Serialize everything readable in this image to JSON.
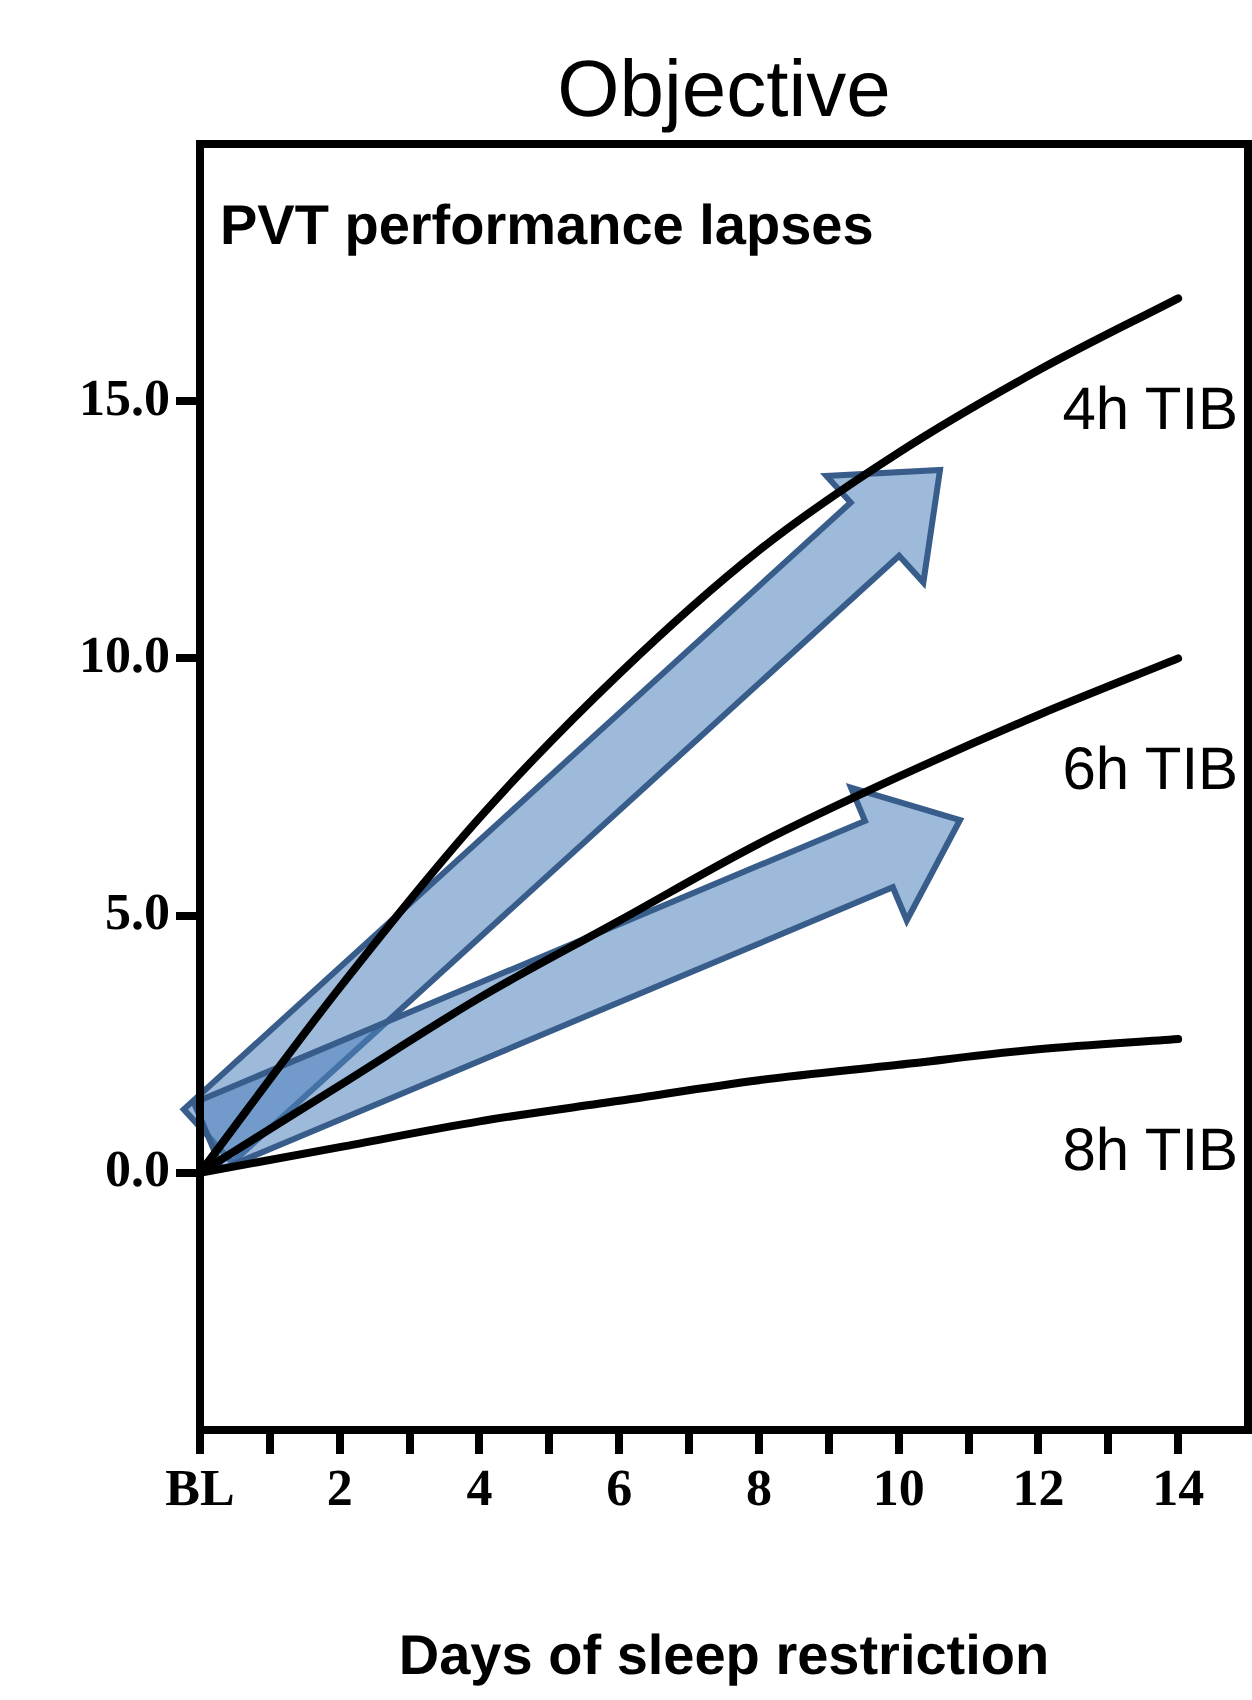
{
  "chart_data": {
    "type": "line",
    "title": "Objective",
    "subtitle": "PVT performance lapses",
    "xlabel": "Days of sleep restriction",
    "x": [
      0,
      2,
      4,
      6,
      8,
      10,
      12,
      14
    ],
    "series": [
      {
        "name": "4h TIB",
        "color": "#000000",
        "values": [
          0,
          3.6,
          6.9,
          9.7,
          12.1,
          14.0,
          15.6,
          17.0
        ]
      },
      {
        "name": "6h TIB",
        "color": "#000000",
        "values": [
          0,
          1.7,
          3.4,
          4.9,
          6.4,
          7.7,
          8.9,
          10.0
        ]
      },
      {
        "name": "8h TIB",
        "color": "#000000",
        "values": [
          0,
          0.5,
          1.0,
          1.4,
          1.8,
          2.1,
          2.4,
          2.6
        ]
      }
    ],
    "xlim": [
      0,
      15
    ],
    "xticks": [
      {
        "value": 0,
        "label": "BL"
      },
      {
        "value": 1,
        "label": null
      },
      2,
      {
        "value": 3,
        "label": null
      },
      4,
      {
        "value": 5,
        "label": null
      },
      6,
      {
        "value": 7,
        "label": null
      },
      8,
      {
        "value": 9,
        "label": null
      },
      10,
      {
        "value": 11,
        "label": null
      },
      12,
      {
        "value": 13,
        "label": null
      },
      14
    ],
    "ylim": [
      -5,
      20
    ],
    "yticks": [
      {
        "value": 0,
        "label": "0.0"
      },
      {
        "value": 5,
        "label": "5.0"
      },
      {
        "value": 10,
        "label": "10.0"
      },
      {
        "value": 15,
        "label": "15.0"
      }
    ],
    "grid": false,
    "legend": false,
    "marker": "none",
    "line_style": "solid"
  }
}
